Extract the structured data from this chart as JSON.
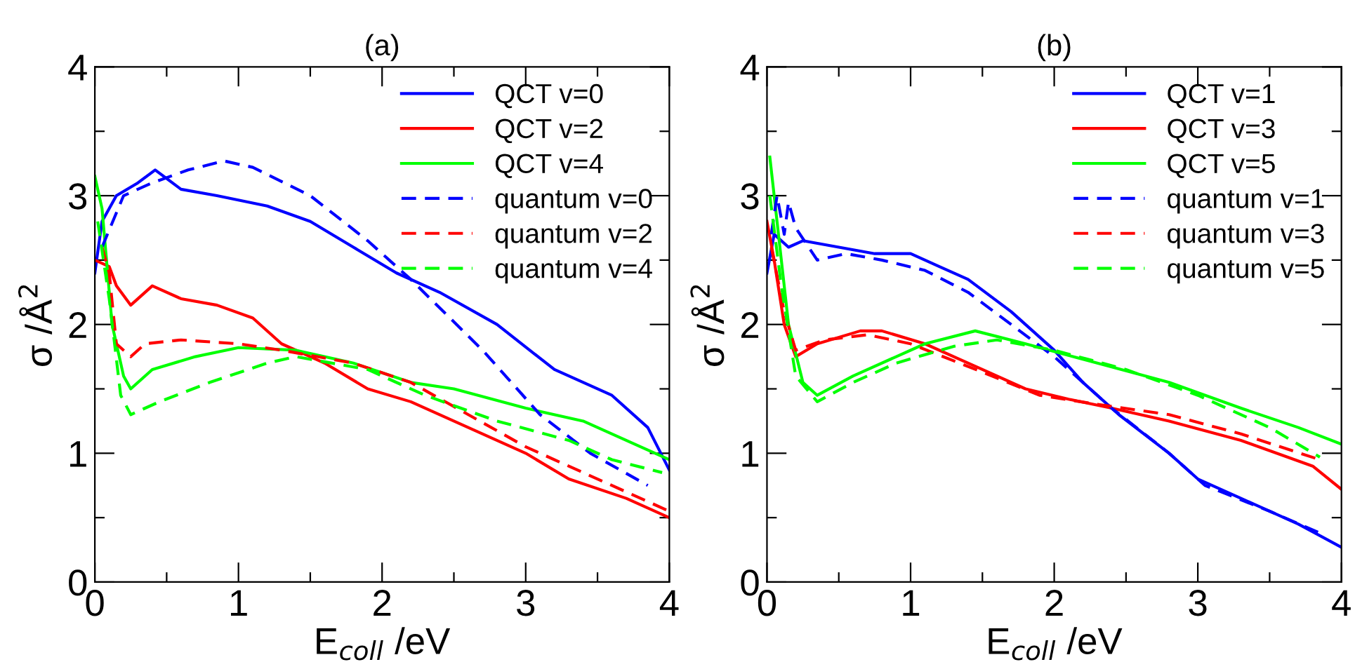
{
  "chart_data": [
    {
      "type": "line",
      "title": "(a)",
      "xlabel": "E$_{coll}$ /eV",
      "ylabel": "σ /Å$^{2}$",
      "xlim": [
        0,
        4
      ],
      "ylim": [
        0,
        4
      ],
      "xticks": [
        0,
        {
          "value": 0.5,
          "label": null
        },
        1,
        {
          "value": 1.5,
          "label": null
        },
        2,
        {
          "value": 2.5,
          "label": null
        },
        3,
        {
          "value": 3.5,
          "label": null
        },
        4
      ],
      "yticks": [
        0,
        {
          "value": 0.5,
          "label": null
        },
        1,
        {
          "value": 1.5,
          "label": null
        },
        2,
        {
          "value": 2.5,
          "label": null
        },
        3,
        {
          "value": 3.5,
          "label": null
        },
        4
      ],
      "grid": false,
      "legend": "top right",
      "marker": "none",
      "series": [
        {
          "name": "QCT v=0",
          "color": "#0000ff",
          "line_style": "solid",
          "x": [
            0,
            0.05,
            0.15,
            0.3,
            0.42,
            0.6,
            0.85,
            1.2,
            1.5,
            1.8,
            2.1,
            2.4,
            2.8,
            3.2,
            3.6,
            3.85,
            4.0
          ],
          "values": [
            2.4,
            2.8,
            3.0,
            3.1,
            3.2,
            3.05,
            3.0,
            2.92,
            2.8,
            2.6,
            2.4,
            2.25,
            2.0,
            1.65,
            1.45,
            1.2,
            0.87
          ]
        },
        {
          "name": "QCT v=2",
          "color": "#ff0000",
          "line_style": "solid",
          "x": [
            0,
            0.1,
            0.15,
            0.25,
            0.4,
            0.6,
            0.85,
            1.1,
            1.3,
            1.6,
            1.9,
            2.2,
            2.6,
            3.0,
            3.3,
            3.7,
            4.0
          ],
          "values": [
            2.5,
            2.45,
            2.3,
            2.15,
            2.3,
            2.2,
            2.15,
            2.05,
            1.85,
            1.7,
            1.5,
            1.4,
            1.2,
            1.0,
            0.8,
            0.65,
            0.5
          ]
        },
        {
          "name": "QCT v=4",
          "color": "#00ff00",
          "line_style": "solid",
          "x": [
            0,
            0.05,
            0.12,
            0.2,
            0.25,
            0.4,
            0.7,
            1.0,
            1.4,
            1.8,
            2.2,
            2.5,
            3.0,
            3.4,
            3.8,
            4.0
          ],
          "values": [
            3.15,
            2.9,
            2.0,
            1.6,
            1.5,
            1.65,
            1.75,
            1.82,
            1.8,
            1.7,
            1.55,
            1.5,
            1.35,
            1.25,
            1.05,
            0.95
          ]
        },
        {
          "name": "quantum v=0",
          "color": "#0000ff",
          "line_style": "dashed",
          "x": [
            0.05,
            0.2,
            0.4,
            0.65,
            0.9,
            1.1,
            1.5,
            1.9,
            2.2,
            2.7,
            3.1,
            3.45,
            3.85
          ],
          "values": [
            2.6,
            3.0,
            3.1,
            3.2,
            3.27,
            3.22,
            3.0,
            2.65,
            2.35,
            1.8,
            1.3,
            1.0,
            0.75
          ]
        },
        {
          "name": "quantum v=2",
          "color": "#ff0000",
          "line_style": "dashed",
          "x": [
            0.05,
            0.1,
            0.15,
            0.25,
            0.35,
            0.6,
            1.0,
            1.3,
            1.8,
            2.2,
            2.6,
            3.0,
            3.5,
            4.0
          ],
          "values": [
            2.6,
            2.4,
            1.85,
            1.75,
            1.85,
            1.88,
            1.85,
            1.8,
            1.7,
            1.55,
            1.3,
            1.05,
            0.8,
            0.55
          ]
        },
        {
          "name": "quantum v=4",
          "color": "#00ff00",
          "line_style": "dashed",
          "x": [
            0.02,
            0.1,
            0.18,
            0.25,
            0.45,
            0.8,
            1.2,
            1.4,
            1.9,
            2.3,
            2.8,
            3.3,
            3.6,
            3.95
          ],
          "values": [
            2.8,
            2.2,
            1.45,
            1.3,
            1.4,
            1.55,
            1.7,
            1.75,
            1.65,
            1.45,
            1.25,
            1.1,
            0.95,
            0.85
          ]
        }
      ]
    },
    {
      "type": "line",
      "title": "(b)",
      "xlabel": "E$_{coll}$ /eV",
      "ylabel": "σ /Å$^{2}$",
      "xlim": [
        0,
        4
      ],
      "ylim": [
        0,
        4
      ],
      "xticks": [
        0,
        {
          "value": 0.5,
          "label": null
        },
        1,
        {
          "value": 1.5,
          "label": null
        },
        2,
        {
          "value": 2.5,
          "label": null
        },
        3,
        {
          "value": 3.5,
          "label": null
        },
        4
      ],
      "yticks": [
        0,
        {
          "value": 0.5,
          "label": null
        },
        1,
        {
          "value": 1.5,
          "label": null
        },
        2,
        {
          "value": 2.5,
          "label": null
        },
        3,
        {
          "value": 3.5,
          "label": null
        },
        4
      ],
      "grid": false,
      "legend": "top right",
      "marker": "none",
      "series": [
        {
          "name": "QCT v=1",
          "color": "#0000ff",
          "line_style": "solid",
          "x": [
            0,
            0.05,
            0.15,
            0.25,
            0.5,
            0.75,
            1.0,
            1.2,
            1.4,
            1.7,
            2.0,
            2.2,
            2.45,
            2.8,
            3.0,
            3.3,
            3.7,
            4.0
          ],
          "values": [
            2.4,
            2.7,
            2.6,
            2.65,
            2.6,
            2.55,
            2.55,
            2.45,
            2.35,
            2.1,
            1.8,
            1.55,
            1.3,
            1.0,
            0.8,
            0.65,
            0.45,
            0.27
          ]
        },
        {
          "name": "QCT v=3",
          "color": "#ff0000",
          "line_style": "solid",
          "x": [
            0,
            0.05,
            0.12,
            0.2,
            0.35,
            0.65,
            0.8,
            1.1,
            1.5,
            1.8,
            2.1,
            2.4,
            2.8,
            3.3,
            3.8,
            4.0
          ],
          "values": [
            2.8,
            2.5,
            2.0,
            1.75,
            1.85,
            1.95,
            1.95,
            1.85,
            1.65,
            1.5,
            1.42,
            1.35,
            1.25,
            1.1,
            0.9,
            0.72
          ]
        },
        {
          "name": "QCT v=5",
          "color": "#00ff00",
          "line_style": "solid",
          "x": [
            0.02,
            0.08,
            0.15,
            0.25,
            0.35,
            0.6,
            0.9,
            1.1,
            1.45,
            1.8,
            2.3,
            2.8,
            3.3,
            3.7,
            4.0
          ],
          "values": [
            3.3,
            2.7,
            2.0,
            1.55,
            1.45,
            1.6,
            1.75,
            1.85,
            1.95,
            1.85,
            1.7,
            1.55,
            1.35,
            1.2,
            1.07
          ]
        },
        {
          "name": "quantum v=1",
          "color": "#0000ff",
          "line_style": "dashed",
          "x": [
            0.03,
            0.07,
            0.12,
            0.15,
            0.2,
            0.35,
            0.55,
            0.8,
            1.1,
            1.4,
            1.7,
            2.0,
            2.4,
            2.8,
            3.05,
            3.5,
            3.85
          ],
          "values": [
            2.7,
            3.0,
            2.7,
            2.95,
            2.75,
            2.5,
            2.55,
            2.5,
            2.42,
            2.25,
            2.0,
            1.75,
            1.35,
            1.0,
            0.75,
            0.55,
            0.38
          ]
        },
        {
          "name": "quantum v=3",
          "color": "#ff0000",
          "line_style": "dashed",
          "x": [
            0.03,
            0.12,
            0.2,
            0.4,
            0.7,
            1.0,
            1.5,
            1.9,
            2.3,
            2.8,
            3.3,
            3.85
          ],
          "values": [
            2.6,
            2.1,
            1.8,
            1.88,
            1.92,
            1.85,
            1.63,
            1.45,
            1.38,
            1.3,
            1.15,
            0.95
          ]
        },
        {
          "name": "quantum v=5",
          "color": "#00ff00",
          "line_style": "dashed",
          "x": [
            0.02,
            0.1,
            0.2,
            0.35,
            0.6,
            0.9,
            1.3,
            1.6,
            2.0,
            2.5,
            3.0,
            3.5,
            3.85
          ],
          "values": [
            3.0,
            2.3,
            1.6,
            1.4,
            1.55,
            1.7,
            1.83,
            1.88,
            1.8,
            1.65,
            1.45,
            1.2,
            0.97
          ]
        }
      ]
    }
  ]
}
